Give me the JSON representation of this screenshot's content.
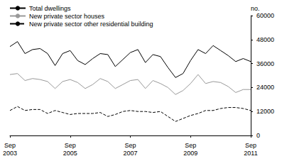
{
  "chart_data": {
    "type": "line",
    "y_label": "no.",
    "categories": [
      "Sep 2003",
      null,
      null,
      null,
      null,
      null,
      null,
      null,
      "Sep 2005",
      null,
      null,
      null,
      null,
      null,
      null,
      null,
      "Sep 2007",
      null,
      null,
      null,
      null,
      null,
      null,
      null,
      "Sep 2009",
      null,
      null,
      null,
      null,
      null,
      null,
      null,
      "Sep 2011"
    ],
    "series": [
      {
        "name": "Total dwellings",
        "color": "#000000",
        "line_style": "solid",
        "values": [
          44500,
          47000,
          41000,
          43000,
          43500,
          41000,
          35000,
          41000,
          42500,
          37500,
          35500,
          38500,
          41000,
          40500,
          34500,
          38000,
          41500,
          43000,
          36500,
          40500,
          39500,
          34000,
          29000,
          31000,
          37500,
          43000,
          41000,
          45000,
          42500,
          40000,
          37000,
          38500,
          37000
        ]
      },
      {
        "name": "New private sector houses",
        "color": "#999999",
        "line_style": "solid",
        "values": [
          30500,
          31000,
          27500,
          28500,
          28000,
          27000,
          23500,
          27000,
          28000,
          26500,
          23500,
          25500,
          28500,
          27000,
          23500,
          25500,
          27500,
          28000,
          23500,
          27500,
          26000,
          24000,
          20500,
          22500,
          26000,
          30500,
          26000,
          27000,
          26500,
          24500,
          21500,
          23000,
          23000
        ]
      },
      {
        "name": "New private sector other residential building",
        "color": "#000000",
        "line_style": "dashed",
        "values": [
          12500,
          14500,
          12500,
          13000,
          13000,
          11000,
          12500,
          11500,
          10500,
          11000,
          11000,
          11000,
          11500,
          9500,
          10500,
          12000,
          12500,
          12000,
          12000,
          11500,
          12000,
          9500,
          7000,
          8500,
          10000,
          11000,
          12500,
          12500,
          13500,
          14000,
          14000,
          13500,
          12500
        ]
      }
    ],
    "ylim": [
      0,
      60000
    ],
    "yticks": [
      0,
      12000,
      24000,
      36000,
      48000,
      60000
    ],
    "grid": false,
    "legend": "top-left"
  }
}
